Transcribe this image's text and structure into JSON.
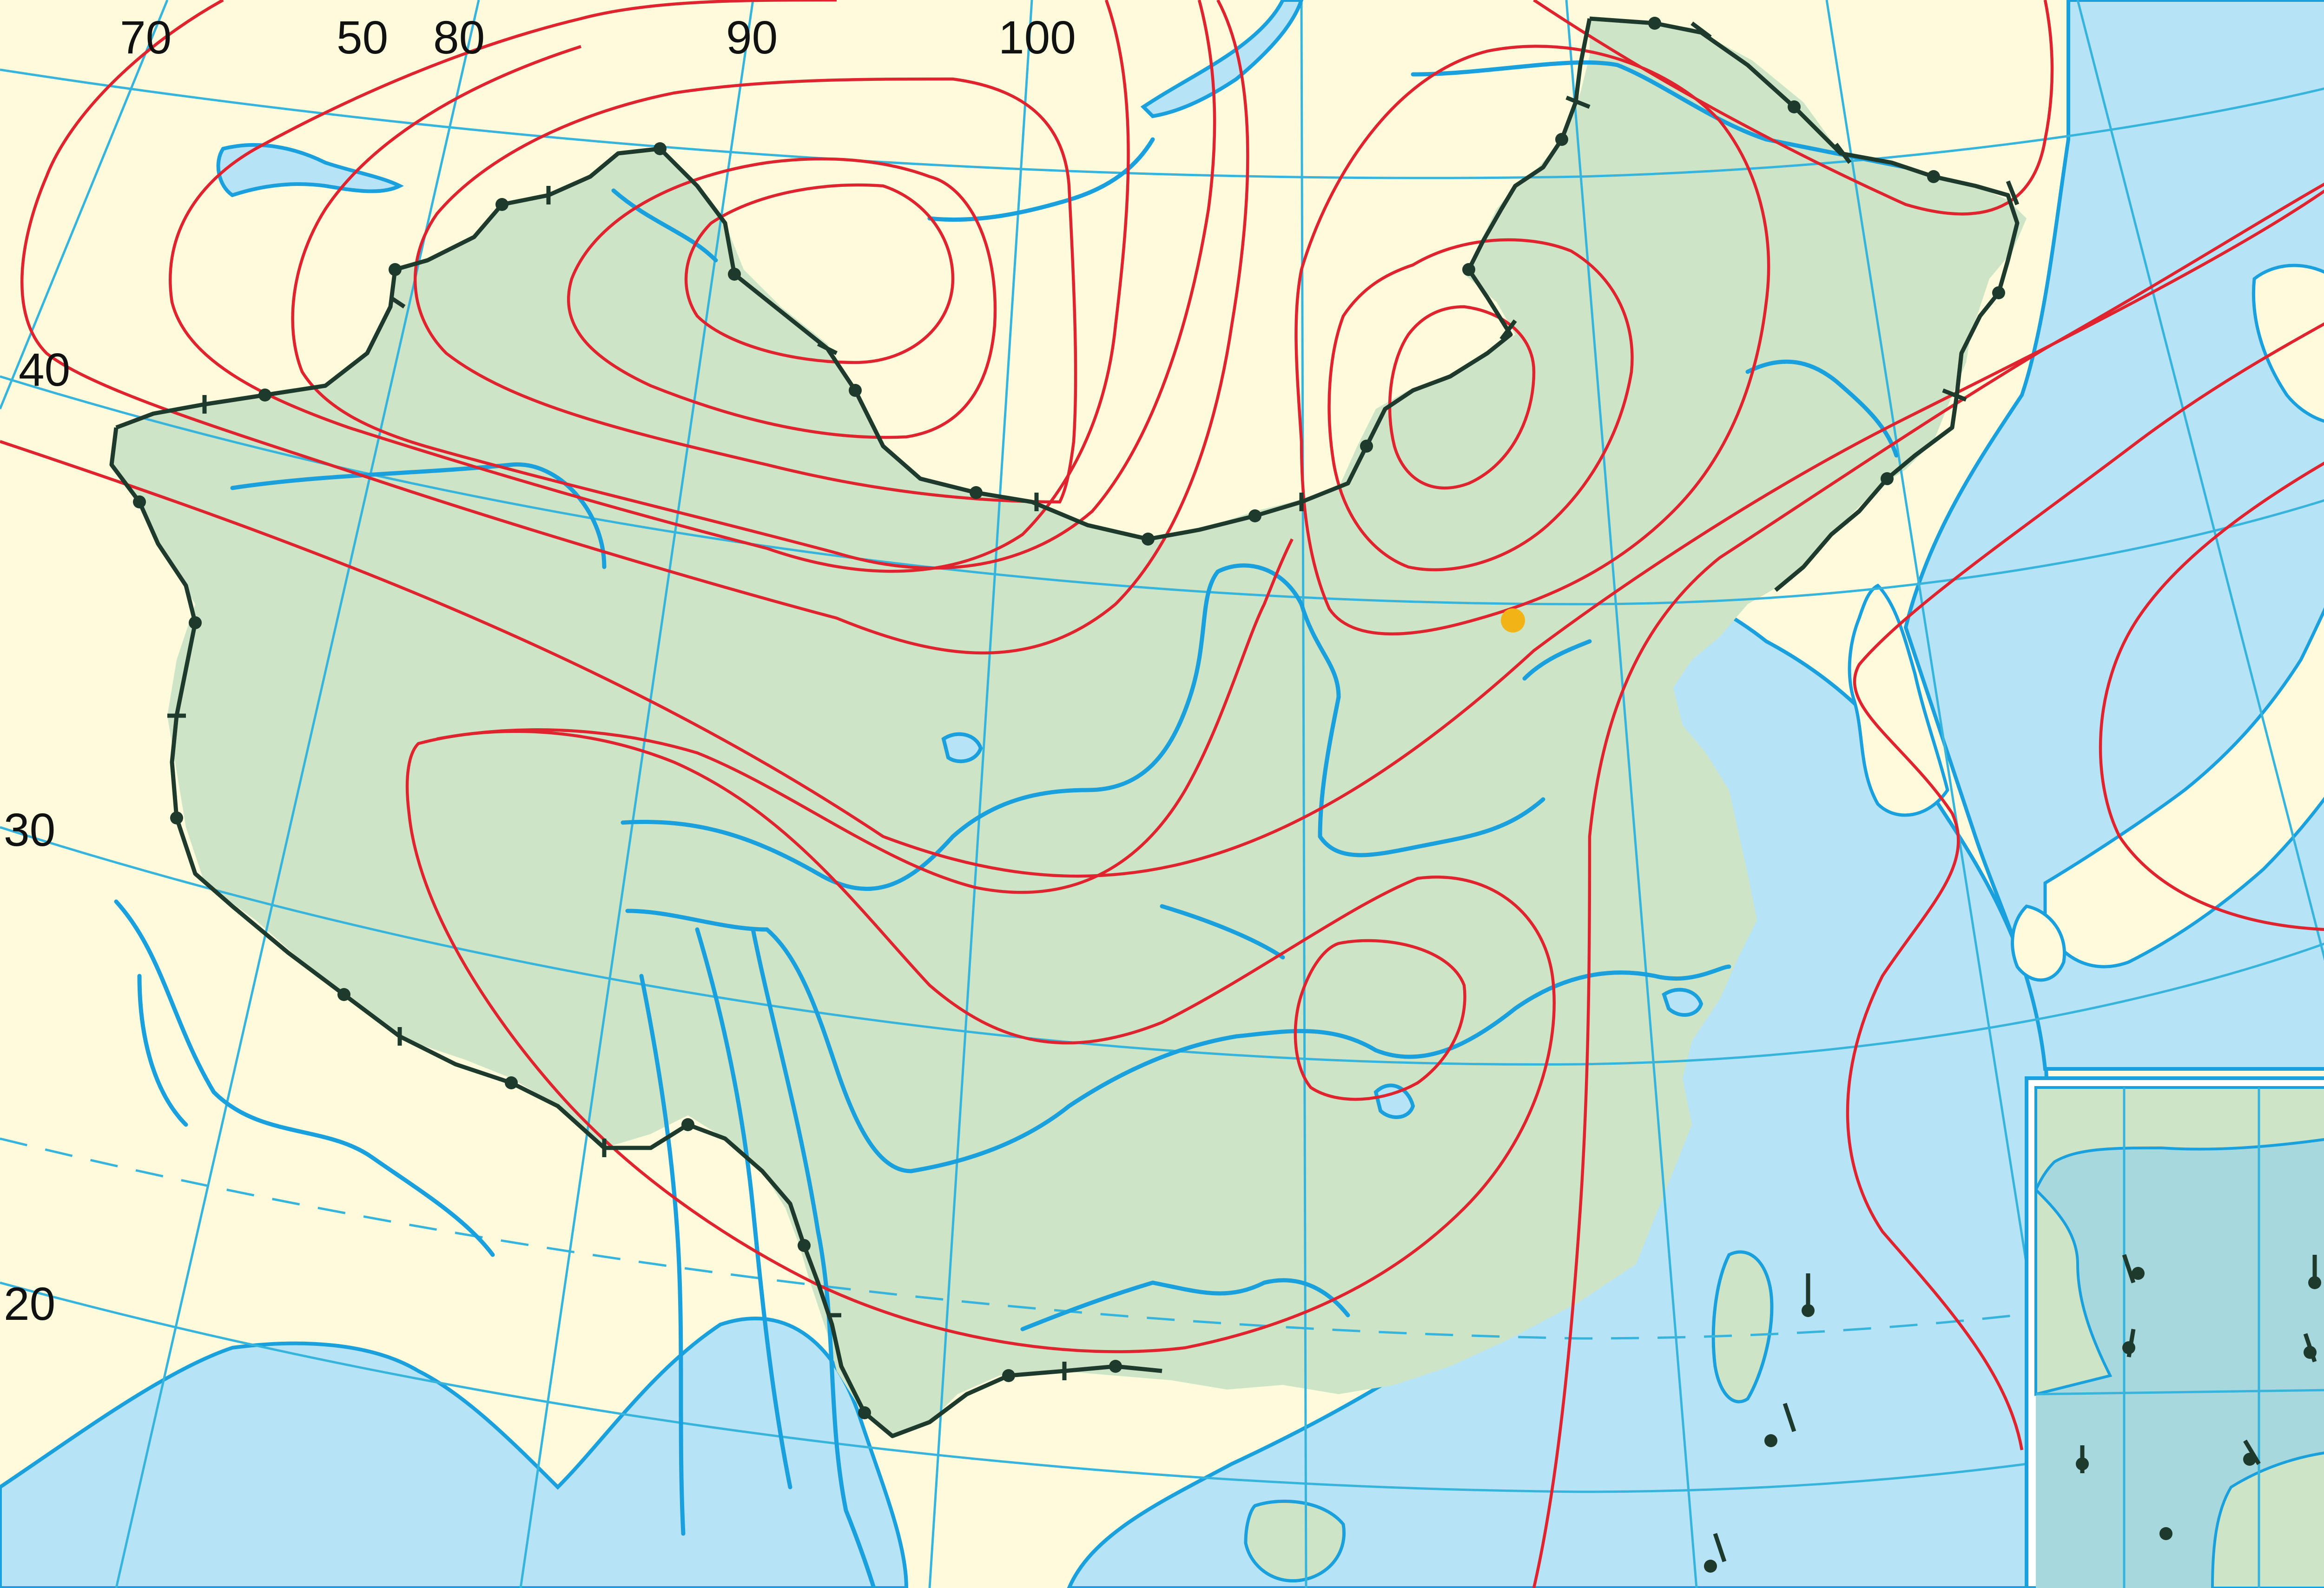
{
  "map": {
    "colors": {
      "land": "#fdfbdc",
      "china": "#cde5c6",
      "sea": "#b7e3f7",
      "inset": "#a6d8de",
      "isoline": "#e0242f",
      "graticule": "#37b4dc",
      "river": "#1aa0dc",
      "border": "#1e3a2c",
      "marker": "#f2b316"
    },
    "longitude_labels_top": [
      "70",
      "50",
      "80",
      "90",
      "100"
    ],
    "latitude_labels_left": [
      "40",
      "30",
      "20"
    ]
  }
}
